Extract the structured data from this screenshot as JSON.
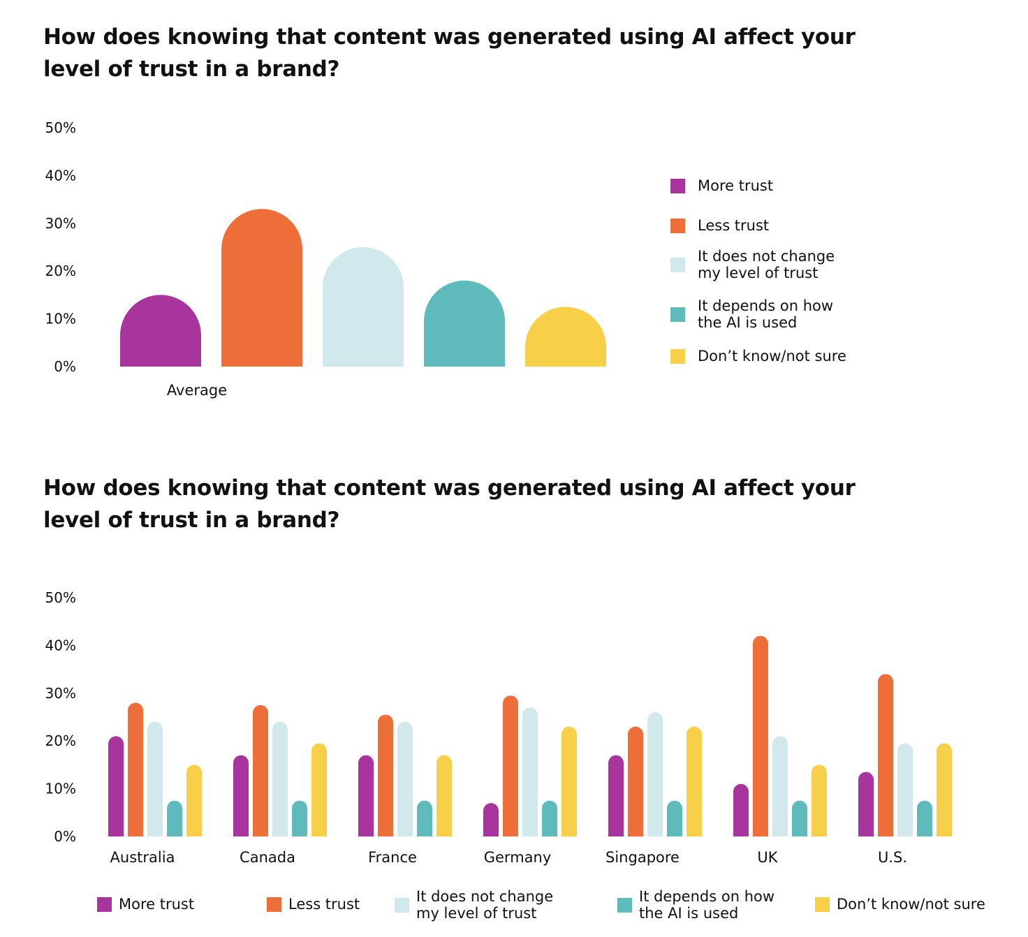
{
  "colors": {
    "more_trust": "#A8359E",
    "less_trust": "#EE6E3A",
    "no_change": "#D1E8EC",
    "depends": "#5FBBBB",
    "dont_know": "#F7CF48"
  },
  "legend": [
    {
      "label": "More trust",
      "color": "#A8359E"
    },
    {
      "label": "Less trust",
      "color": "#EE6E3A"
    },
    {
      "label": "It does not change\nmy level of trust",
      "color": "#D1E8EC"
    },
    {
      "label": "It depends on how\nthe AI is used",
      "color": "#5FBBBB"
    },
    {
      "label": "Don’t know/not sure",
      "color": "#F7CF48"
    }
  ],
  "chart_data": [
    {
      "type": "bar",
      "title": "How does knowing that content was generated using AI affect your level of trust in a brand?",
      "categories": [
        "Average"
      ],
      "series": [
        {
          "name": "More trust",
          "values": [
            15
          ]
        },
        {
          "name": "Less trust",
          "values": [
            33
          ]
        },
        {
          "name": "It does not change my level of trust",
          "values": [
            25
          ]
        },
        {
          "name": "It depends on how the AI is used",
          "values": [
            18
          ]
        },
        {
          "name": "Don’t know/not sure",
          "values": [
            12.5
          ]
        }
      ],
      "yticks": [
        "0%",
        "10%",
        "20%",
        "30%",
        "40%",
        "50%"
      ],
      "ylim": [
        0,
        50
      ],
      "xlabel": "",
      "ylabel": "",
      "legend_position": "right"
    },
    {
      "type": "bar",
      "title": "How does knowing that content was generated using AI affect your level of trust in a brand?",
      "categories": [
        "Australia",
        "Canada",
        "France",
        "Germany",
        "Singapore",
        "UK",
        "U.S."
      ],
      "series": [
        {
          "name": "More trust",
          "values": [
            21,
            17,
            17,
            7,
            17,
            11,
            13.5
          ]
        },
        {
          "name": "Less trust",
          "values": [
            28,
            27.5,
            25.5,
            29.5,
            23,
            42,
            34
          ]
        },
        {
          "name": "It does not change my level of trust",
          "values": [
            24,
            24,
            24,
            27,
            26,
            21,
            19.5
          ]
        },
        {
          "name": "It depends on how the AI is used",
          "values": [
            7.5,
            7.5,
            7.5,
            7.5,
            7.5,
            7.5,
            7.5
          ]
        },
        {
          "name": "Don’t know/not sure",
          "values": [
            15,
            19.5,
            17,
            23,
            23,
            15,
            19.5
          ]
        }
      ],
      "yticks": [
        "0%",
        "10%",
        "20%",
        "30%",
        "40%",
        "50%"
      ],
      "ylim": [
        0,
        50
      ],
      "xlabel": "",
      "ylabel": "",
      "legend_position": "bottom"
    }
  ]
}
